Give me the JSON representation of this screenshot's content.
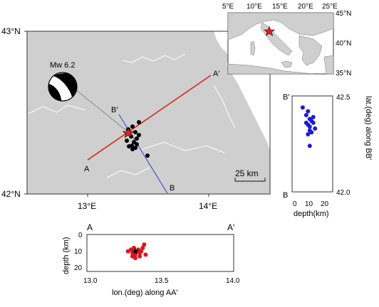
{
  "main_map": {
    "lat_labels": [
      "43°N",
      "42°N"
    ],
    "lon_labels": [
      "13°E",
      "14°E"
    ],
    "magnitude_label": "Mw 6.2",
    "profile_aa": {
      "start": "A",
      "end": "A′"
    },
    "profile_bb": {
      "start": "B",
      "end": "B′"
    },
    "scale_bar_label": "25 km",
    "colors": {
      "land": "#cfcfcf",
      "sea": "#ffffff",
      "profile_aa": "#d8281c",
      "profile_bb": "#2b3fd6",
      "events": "#000000",
      "epicenter": "#d8281c"
    }
  },
  "inset_map": {
    "lon_labels": [
      "5°E",
      "10°E",
      "15°E",
      "20°E",
      "25°E"
    ],
    "lat_labels": [
      "45°N",
      "40°N",
      "35°N"
    ],
    "marker_color": "#e31a1c"
  },
  "bb_section": {
    "top_label": "B′",
    "bottom_label": "B",
    "lat_ticks": [
      "42.5",
      "42.0"
    ],
    "depth_ticks": [
      "0",
      "10",
      "20"
    ],
    "xlabel": "depth(km)",
    "ylabel": "lat.(deg) along BB′",
    "color": "#1a1ad8",
    "points_depth_km": [
      6,
      9,
      8,
      10,
      11,
      12,
      8,
      9,
      10,
      13,
      10,
      11,
      9,
      12,
      10
    ],
    "points_lat": [
      42.44,
      42.42,
      42.4,
      42.38,
      42.37,
      42.39,
      42.36,
      42.35,
      42.34,
      42.33,
      42.32,
      42.31,
      42.3,
      42.36,
      42.24
    ]
  },
  "aa_section": {
    "left_label": "A",
    "right_label": "A′",
    "lon_ticks": [
      "13.0",
      "13.5",
      "14.0"
    ],
    "depth_ticks": [
      "0",
      "10",
      "20"
    ],
    "xlabel": "lon.(deg) along AA′",
    "ylabel": "depth (km)",
    "color": "#e0141c",
    "points_lon": [
      13.28,
      13.3,
      13.31,
      13.32,
      13.33,
      13.34,
      13.35,
      13.36,
      13.37,
      13.38,
      13.39,
      13.33,
      13.31,
      13.36,
      13.4
    ],
    "points_depth_km": [
      10,
      9,
      11,
      8,
      12,
      10,
      9,
      11,
      10,
      8,
      6,
      14,
      13,
      13,
      12
    ],
    "star": {
      "lon": 13.33,
      "depth_km": 10
    }
  }
}
